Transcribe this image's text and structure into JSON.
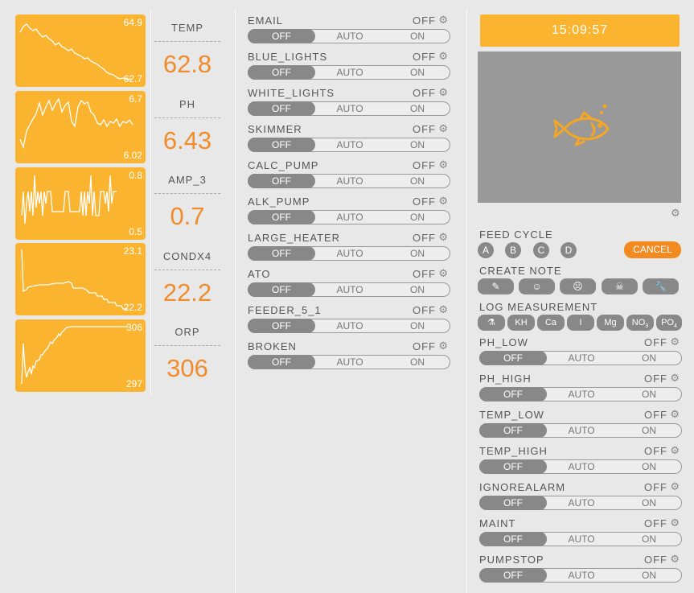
{
  "metrics": [
    {
      "name": "TEMP",
      "value": "62.8",
      "max": "64.9",
      "min": "62.7"
    },
    {
      "name": "PH",
      "value": "6.43",
      "max": "6.7",
      "min": "6.02"
    },
    {
      "name": "AMP_3",
      "value": "0.7",
      "max": "0.8",
      "min": "0.5"
    },
    {
      "name": "CONDX4",
      "value": "22.2",
      "max": "23.1",
      "min": "22.2"
    },
    {
      "name": "ORP",
      "value": "306",
      "max": "306",
      "min": "297"
    }
  ],
  "equipment": [
    {
      "name": "EMAIL",
      "state": "OFF"
    },
    {
      "name": "BLUE_LIGHTS",
      "state": "OFF"
    },
    {
      "name": "WHITE_LIGHTS",
      "state": "OFF"
    },
    {
      "name": "SKIMMER",
      "state": "OFF"
    },
    {
      "name": "CALC_PUMP",
      "state": "OFF"
    },
    {
      "name": "ALK_PUMP",
      "state": "OFF"
    },
    {
      "name": "LARGE_HEATER",
      "state": "OFF"
    },
    {
      "name": "ATO",
      "state": "OFF"
    },
    {
      "name": "FEEDER_5_1",
      "state": "OFF"
    },
    {
      "name": "BROKEN",
      "state": "OFF"
    }
  ],
  "toggle_labels": {
    "off": "OFF",
    "auto": "AUTO",
    "on": "ON"
  },
  "clock": "15:09:57",
  "feed_cycle": {
    "title": "FEED CYCLE",
    "options": [
      "A",
      "B",
      "C",
      "D"
    ],
    "cancel": "CANCEL"
  },
  "create_note": {
    "title": "CREATE NOTE",
    "icons": [
      "pencil-icon",
      "smile-icon",
      "frown-icon",
      "skull-icon",
      "wrench-icon"
    ]
  },
  "log_measurement": {
    "title": "LOG MEASUREMENT",
    "buttons": [
      "⚗",
      "KH",
      "Ca",
      "I",
      "Mg",
      "NO",
      "PO"
    ]
  },
  "alarms": [
    {
      "name": "PH_LOW",
      "state": "OFF"
    },
    {
      "name": "PH_HIGH",
      "state": "OFF"
    },
    {
      "name": "TEMP_LOW",
      "state": "OFF"
    },
    {
      "name": "TEMP_HIGH",
      "state": "OFF"
    },
    {
      "name": "IGNOREALARM",
      "state": "OFF"
    },
    {
      "name": "MAINT",
      "state": "OFF"
    },
    {
      "name": "PUMPSTOP",
      "state": "OFF"
    }
  ],
  "colors": {
    "accent": "#fbb430",
    "value": "#f08c2c",
    "cancel": "#f28a1f",
    "toggle": "#888888"
  }
}
